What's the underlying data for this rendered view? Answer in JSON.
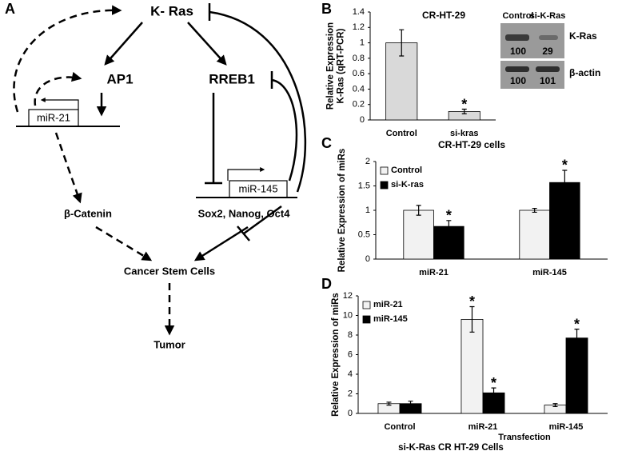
{
  "panel_labels": [
    "A",
    "B",
    "C",
    "D"
  ],
  "diagram": {
    "nodes": [
      "K- Ras",
      "AP1",
      "RREB1",
      "miR-21",
      "miR-145",
      "β-Catenin",
      "Sox2, Nanog, Oct4",
      "Cancer Stem Cells",
      "Tumor"
    ]
  },
  "blot": {
    "columns": [
      "Control",
      "si-K-Ras"
    ],
    "rows": [
      {
        "label": "K-Ras",
        "values": [
          100,
          29
        ]
      },
      {
        "label": "β-actin",
        "values": [
          100,
          101
        ]
      }
    ]
  },
  "chart_data": [
    {
      "type": "bar",
      "title": "CR-HT-29",
      "ylabel": [
        "Relative Expression",
        "K-Ras (qRT-PCR)"
      ],
      "categories": [
        "Control",
        "si-kras"
      ],
      "values": [
        1.0,
        0.11
      ],
      "errors": [
        0.17,
        0.03
      ],
      "markers": [
        null,
        "*"
      ],
      "color": "#d9d9d9",
      "ylim": [
        0,
        1.4
      ],
      "yticks": [
        0,
        0.2,
        0.4,
        0.6,
        0.8,
        1,
        1.2,
        1.4
      ]
    },
    {
      "type": "bar",
      "title": "CR-HT-29 cells",
      "ylabel": "Relative Expression of miRs",
      "categories": [
        "miR-21",
        "miR-145"
      ],
      "series": [
        {
          "name": "Control",
          "color": "#f2f2f2",
          "values": [
            1.0,
            1.0
          ],
          "errors": [
            0.1,
            0.04
          ]
        },
        {
          "name": "si-K-ras",
          "color": "#000000",
          "values": [
            0.67,
            1.57
          ],
          "errors": [
            0.12,
            0.25
          ],
          "markers": [
            "*",
            "*"
          ]
        }
      ],
      "ylim": [
        0,
        2
      ],
      "yticks": [
        0,
        0.5,
        1,
        1.5,
        2
      ],
      "legend": "upper left"
    },
    {
      "type": "bar",
      "ylabel": "Relative Expression of miRs",
      "xlabel": "si-K-Ras CR HT-29 Cells",
      "group_label": "Transfection",
      "categories": [
        "Control",
        "miR-21",
        "miR-145"
      ],
      "series": [
        {
          "name": "miR-21",
          "color": "#f2f2f2",
          "values": [
            1.0,
            9.6,
            0.85
          ],
          "errors": [
            0.15,
            1.3,
            0.15
          ],
          "markers": [
            null,
            "*",
            null
          ]
        },
        {
          "name": "miR-145",
          "color": "#000000",
          "values": [
            1.0,
            2.1,
            7.7
          ],
          "errors": [
            0.25,
            0.5,
            0.9
          ],
          "markers": [
            null,
            "*",
            "*"
          ]
        }
      ],
      "ylim": [
        0,
        12
      ],
      "yticks": [
        0,
        2,
        4,
        6,
        8,
        10,
        12
      ],
      "legend": "upper left"
    }
  ]
}
